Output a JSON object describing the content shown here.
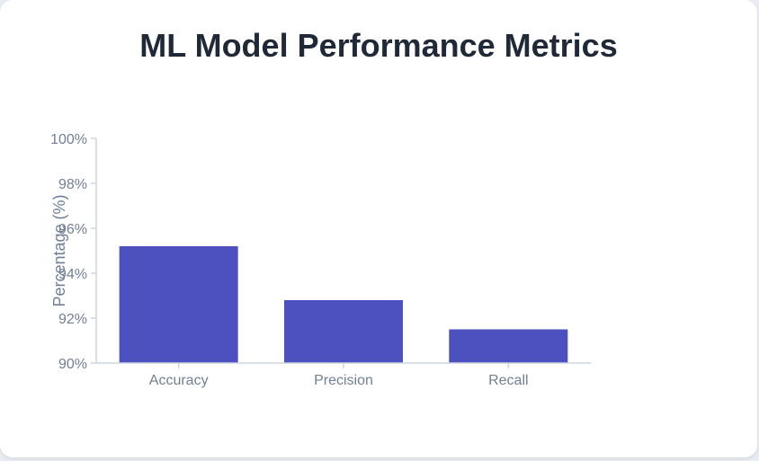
{
  "chart_data": {
    "type": "bar",
    "title": "ML Model Performance Metrics",
    "xlabel": "",
    "ylabel": "Percentage (%)",
    "categories": [
      "Accuracy",
      "Precision",
      "Recall"
    ],
    "values": [
      95.2,
      92.8,
      91.5
    ],
    "ylim": [
      90,
      100
    ],
    "yticks": [
      "90%",
      "92%",
      "94%",
      "96%",
      "98%",
      "100%"
    ],
    "grid": false,
    "legend": "none",
    "colors": {
      "bar": "#4c51bf",
      "axis": "#cbd5e0",
      "text": "#718096",
      "title": "#1f2937"
    }
  }
}
